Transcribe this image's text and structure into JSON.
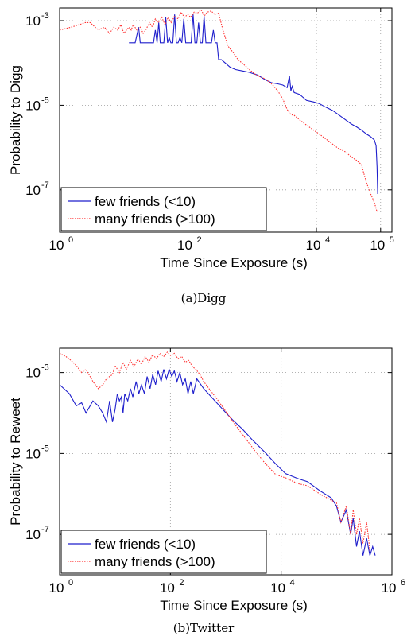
{
  "figure": {
    "panels": [
      {
        "caption": "(a)Digg"
      },
      {
        "caption": "(b)Twitter"
      }
    ]
  },
  "chart_data": [
    {
      "type": "line",
      "title": "",
      "caption": "(a)Digg",
      "xlabel": "Time Since Exposure (s)",
      "ylabel": "Probability to Digg",
      "xscale": "log",
      "yscale": "log",
      "xlim": [
        1,
        150000
      ],
      "ylim": [
        1e-08,
        0.002
      ],
      "xticks": [
        1,
        100,
        10000,
        100000
      ],
      "yticks": [
        1e-07,
        1e-05,
        0.001
      ],
      "xtick_labels": [
        {
          "base": "10",
          "exp": "0"
        },
        {
          "base": "10",
          "exp": "2"
        },
        {
          "base": "10",
          "exp": "4"
        },
        {
          "base": "10",
          "exp": "5"
        }
      ],
      "ytick_labels": [
        {
          "base": "10",
          "exp": "-7"
        },
        {
          "base": "10",
          "exp": "-5"
        },
        {
          "base": "10",
          "exp": "-3"
        }
      ],
      "grid": true,
      "legend": "bottom-left",
      "series": [
        {
          "name": "few friends (<10)",
          "color": "#1f1fcc",
          "style": "solid",
          "x": [
            12,
            13,
            15,
            17,
            18,
            20,
            22,
            23,
            25,
            27,
            29,
            31,
            33,
            35,
            37,
            39,
            42,
            45,
            48,
            51,
            54,
            58,
            62,
            66,
            70,
            75,
            80,
            86,
            92,
            98,
            105,
            112,
            120,
            128,
            137,
            146,
            156,
            167,
            178,
            190,
            203,
            217,
            232,
            248,
            265,
            283,
            300,
            330,
            380,
            450,
            550,
            700,
            900,
            1200,
            1600,
            2000,
            2500,
            3000,
            3500,
            3800,
            4000,
            4200,
            4500,
            5500,
            7000,
            9000,
            11000,
            14000,
            18000,
            22000,
            28000,
            35000,
            42000,
            50000,
            60000,
            70000,
            80000,
            85000,
            88000,
            90000
          ],
          "y": [
            0.0003,
            0.0003,
            0.0003,
            0.0007,
            0.0003,
            0.0003,
            0.0003,
            0.0003,
            0.0003,
            0.0003,
            0.0003,
            0.0006,
            0.0003,
            0.0009,
            0.0003,
            0.0003,
            0.0003,
            0.0012,
            0.0003,
            0.0004,
            0.0003,
            0.0003,
            0.0014,
            0.0003,
            0.0003,
            0.0004,
            0.0003,
            0.0011,
            0.0003,
            0.0003,
            0.0003,
            0.0003,
            0.0014,
            0.0003,
            0.0003,
            0.0009,
            0.0003,
            0.0003,
            0.0013,
            0.0003,
            0.0003,
            0.0003,
            0.0003,
            0.0006,
            0.0003,
            0.0003,
            0.00012,
            0.00012,
            0.0001,
            8e-05,
            7e-05,
            6.5e-05,
            6e-05,
            5.2e-05,
            4e-05,
            3.4e-05,
            3.2e-05,
            3e-05,
            2.6e-05,
            5e-05,
            2.2e-05,
            2.8e-05,
            2e-05,
            1.8e-05,
            1.3e-05,
            1.2e-05,
            1.1e-05,
            9e-06,
            7.5e-06,
            6e-06,
            4.6e-06,
            3.6e-06,
            3.1e-06,
            2.6e-06,
            2.1e-06,
            1.8e-06,
            1.5e-06,
            1.1e-06,
            3.5e-07,
            8e-08
          ]
        },
        {
          "name": "many friends (>100)",
          "color": "#ff3030",
          "style": "dotted",
          "x": [
            1,
            1.5,
            2,
            2.5,
            3,
            4,
            5,
            6,
            7,
            8,
            9,
            10,
            11,
            12,
            13,
            14,
            16,
            18,
            20,
            22,
            25,
            28,
            31,
            35,
            39,
            44,
            49,
            55,
            62,
            70,
            78,
            88,
            99,
            110,
            125,
            140,
            160,
            180,
            200,
            230,
            260,
            300,
            350,
            420,
            500,
            600,
            750,
            900,
            1100,
            1300,
            1600,
            2000,
            2500,
            3000,
            3500,
            4000,
            4500,
            5500,
            7000,
            9000,
            11000,
            14000,
            18000,
            22000,
            28000,
            35000,
            42000,
            50000,
            60000,
            70000,
            80000,
            88000
          ],
          "y": [
            0.0006,
            0.0007,
            0.0008,
            0.0009,
            0.0009,
            0.0006,
            0.0007,
            0.0005,
            0.0007,
            0.0006,
            0.0008,
            0.0005,
            0.0006,
            0.0007,
            0.0006,
            0.0008,
            0.0006,
            0.0007,
            0.0005,
            0.0006,
            0.0009,
            0.0007,
            0.0011,
            0.0009,
            0.0012,
            0.0008,
            0.0012,
            0.0009,
            0.0013,
            0.0011,
            0.0016,
            0.0012,
            0.0014,
            0.0012,
            0.0016,
            0.0015,
            0.0018,
            0.0013,
            0.0016,
            0.0017,
            0.0014,
            0.0015,
            0.0006,
            0.00025,
            0.00018,
            0.00012,
            9e-05,
            7e-05,
            5.5e-05,
            4.8e-05,
            4.2e-05,
            3.2e-05,
            2.2e-05,
            1.4e-05,
            8e-06,
            6e-06,
            5.8e-06,
            4.5e-06,
            3.4e-06,
            2.6e-06,
            2.1e-06,
            1.6e-06,
            1.2e-06,
            9.5e-07,
            8e-07,
            6e-07,
            5e-07,
            4e-07,
            1.5e-07,
            8e-08,
            5e-08,
            3e-08
          ]
        }
      ]
    },
    {
      "type": "line",
      "title": "",
      "caption": "(b)Twitter",
      "xlabel": "Time Since Exposure (s)",
      "ylabel": "Probability to Reweet",
      "xscale": "log",
      "yscale": "log",
      "xlim": [
        1,
        1000000
      ],
      "ylim": [
        1e-08,
        0.004
      ],
      "xticks": [
        1,
        100,
        10000,
        1000000
      ],
      "yticks": [
        1e-07,
        1e-05,
        0.001
      ],
      "xtick_labels": [
        {
          "base": "10",
          "exp": "0"
        },
        {
          "base": "10",
          "exp": "2"
        },
        {
          "base": "10",
          "exp": "4"
        },
        {
          "base": "10",
          "exp": "6"
        }
      ],
      "ytick_labels": [
        {
          "base": "10",
          "exp": "-7"
        },
        {
          "base": "10",
          "exp": "-5"
        },
        {
          "base": "10",
          "exp": "-3"
        }
      ],
      "grid": true,
      "legend": "bottom-left",
      "series": [
        {
          "name": "few friends (<10)",
          "color": "#1f1fcc",
          "style": "solid",
          "x": [
            1,
            1.5,
            2,
            2.5,
            3,
            4,
            5,
            6,
            7,
            8,
            9,
            10,
            11,
            12,
            13,
            14,
            15,
            17,
            19,
            21,
            24,
            27,
            30,
            34,
            38,
            43,
            48,
            54,
            60,
            68,
            76,
            85,
            95,
            106,
            118,
            132,
            148,
            166,
            186,
            208,
            233,
            260,
            300,
            400,
            600,
            900,
            1300,
            2000,
            3000,
            5000,
            8000,
            12000,
            20000,
            30000,
            50000,
            80000,
            100000,
            120000,
            150000,
            180000,
            200000,
            230000,
            260000,
            300000,
            350000,
            400000,
            450000,
            500000
          ],
          "y": [
            0.0005,
            0.0003,
            0.00015,
            0.00018,
            0.0001,
            0.0002,
            0.00015,
            0.0001,
            6e-05,
            0.0002,
            6e-05,
            0.00012,
            0.0003,
            0.0002,
            0.00025,
            0.0001,
            0.0003,
            0.0002,
            0.0004,
            0.00025,
            0.0006,
            0.0003,
            0.0005,
            0.0003,
            0.0008,
            0.0004,
            0.0009,
            0.0005,
            0.0011,
            0.0006,
            0.0012,
            0.0007,
            0.0012,
            0.0008,
            0.0011,
            0.0006,
            0.001,
            0.0005,
            0.0007,
            0.0003,
            0.0006,
            0.0003,
            0.0007,
            0.0004,
            0.00022,
            0.00012,
            7e-05,
            4e-05,
            2.2e-05,
            1.1e-05,
            5.5e-06,
            3.2e-06,
            2.4e-06,
            2e-06,
            1.2e-06,
            8e-07,
            5e-07,
            2e-07,
            4e-07,
            1e-07,
            2.5e-07,
            5e-08,
            1.2e-07,
            3e-08,
            8e-08,
            3e-08,
            5e-08,
            3e-08
          ]
        },
        {
          "name": "many friends (>100)",
          "color": "#ff3030",
          "style": "dotted",
          "x": [
            1,
            1.3,
            1.6,
            2,
            2.5,
            3,
            4,
            5,
            6,
            7,
            8,
            9,
            10,
            12,
            14,
            16,
            19,
            22,
            26,
            30,
            35,
            41,
            48,
            56,
            65,
            76,
            88,
            102,
            118,
            137,
            160,
            185,
            215,
            250,
            290,
            340,
            400,
            500,
            700,
            1000,
            1500,
            2200,
            3300,
            5000,
            8000,
            12000,
            20000,
            30000,
            50000,
            80000,
            100000,
            120000,
            150000,
            180000,
            200000,
            230000,
            260000,
            300000,
            350000,
            400000
          ],
          "y": [
            0.003,
            0.0025,
            0.002,
            0.0015,
            0.001,
            0.0012,
            0.0006,
            0.0004,
            0.0005,
            0.0007,
            0.0008,
            0.0009,
            0.0015,
            0.001,
            0.0018,
            0.0012,
            0.002,
            0.0014,
            0.0022,
            0.0016,
            0.0025,
            0.0018,
            0.0028,
            0.0022,
            0.003,
            0.0025,
            0.0032,
            0.0026,
            0.003,
            0.0022,
            0.0025,
            0.0018,
            0.002,
            0.0014,
            0.0012,
            0.0009,
            0.0006,
            0.0004,
            0.00022,
            0.00011,
            5e-05,
            2.5e-05,
            1.2e-05,
            6e-06,
            3e-06,
            2.5e-06,
            1.8e-06,
            1.6e-06,
            1e-06,
            7e-07,
            6e-07,
            2e-07,
            5e-07,
            1e-07,
            4e-07,
            1e-07,
            2.5e-07,
            6e-08,
            2e-07,
            4e-08
          ]
        }
      ]
    }
  ]
}
